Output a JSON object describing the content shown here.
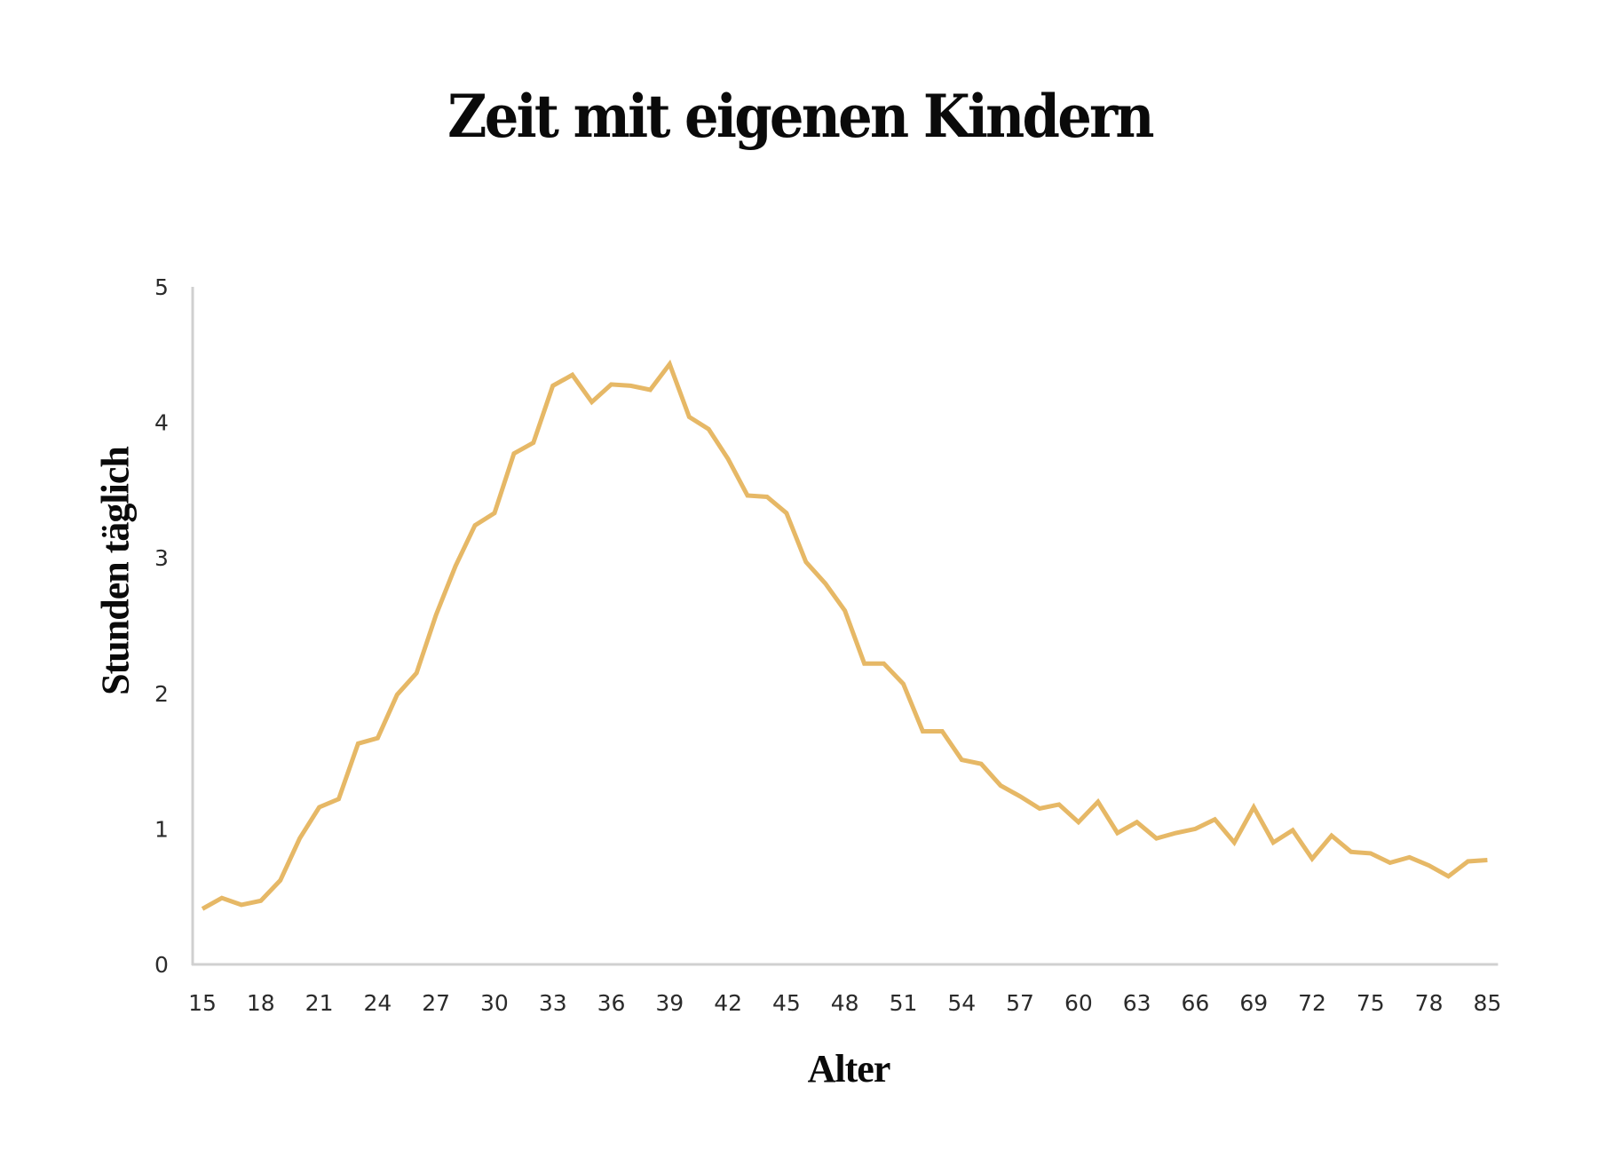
{
  "chart_data": {
    "type": "line",
    "title": "Zeit mit eigenen Kindern",
    "xlabel": "Alter",
    "ylabel": "Stunden täglich",
    "ylim": [
      0,
      5
    ],
    "yticks": [
      0,
      1,
      2,
      3,
      4,
      5
    ],
    "xtick_labels": [
      "15",
      "18",
      "21",
      "24",
      "27",
      "30",
      "33",
      "36",
      "39",
      "42",
      "45",
      "48",
      "51",
      "54",
      "57",
      "60",
      "63",
      "66",
      "69",
      "72",
      "75",
      "78",
      "85"
    ],
    "grid": false,
    "legend": null,
    "line_color": "#E6B866",
    "axis_color": "#D0D0D0",
    "categories": [
      "15",
      "16",
      "17",
      "18",
      "19",
      "20",
      "21",
      "22",
      "23",
      "24",
      "25",
      "26",
      "27",
      "28",
      "29",
      "30",
      "31",
      "32",
      "33",
      "34",
      "35",
      "36",
      "37",
      "38",
      "39",
      "40",
      "41",
      "42",
      "43",
      "44",
      "45",
      "46",
      "47",
      "48",
      "49",
      "50",
      "51",
      "52",
      "53",
      "54",
      "55",
      "56",
      "57",
      "58",
      "59",
      "60",
      "61",
      "62",
      "63",
      "64",
      "65",
      "66",
      "67",
      "68",
      "69",
      "70",
      "71",
      "72",
      "73",
      "74",
      "75",
      "76",
      "77",
      "78",
      "79",
      "80",
      "85"
    ],
    "series": [
      {
        "name": "Stunden täglich",
        "values": [
          0.41,
          0.49,
          0.44,
          0.47,
          0.62,
          0.93,
          1.16,
          1.22,
          1.63,
          1.67,
          1.99,
          2.15,
          2.58,
          2.94,
          3.24,
          3.33,
          3.77,
          3.85,
          4.27,
          4.35,
          4.15,
          4.28,
          4.27,
          4.24,
          4.43,
          4.04,
          3.95,
          3.73,
          3.46,
          3.45,
          3.33,
          2.97,
          2.81,
          2.61,
          2.22,
          2.22,
          2.07,
          1.72,
          1.72,
          1.51,
          1.48,
          1.32,
          1.24,
          1.15,
          1.18,
          1.05,
          1.2,
          0.97,
          1.05,
          0.93,
          0.97,
          1.0,
          1.07,
          0.9,
          1.16,
          0.9,
          0.99,
          0.78,
          0.95,
          0.83,
          0.82,
          0.75,
          0.79,
          0.73,
          0.65,
          0.76,
          0.77
        ]
      }
    ]
  }
}
